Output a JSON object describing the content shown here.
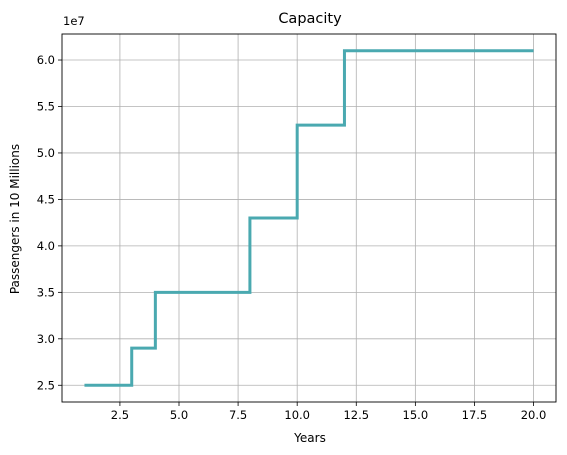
{
  "chart_data": {
    "type": "line",
    "drawstyle": "steps-post",
    "title": "Capacity",
    "xlabel": "Years",
    "ylabel": "Passengers in 10 Millions",
    "y_offset_label": "1e7",
    "xlim": [
      0.05,
      20.95
    ],
    "ylim": [
      23200000,
      62800000
    ],
    "grid": true,
    "line_color": "#4aa9b0",
    "x_ticks": [
      2.5,
      5.0,
      7.5,
      10.0,
      12.5,
      15.0,
      17.5,
      20.0
    ],
    "x_tick_labels": [
      "2.5",
      "5.0",
      "7.5",
      "10.0",
      "12.5",
      "15.0",
      "17.5",
      "20.0"
    ],
    "y_ticks": [
      25000000,
      30000000,
      35000000,
      40000000,
      45000000,
      50000000,
      55000000,
      60000000
    ],
    "y_tick_labels": [
      "2.5",
      "3.0",
      "3.5",
      "4.0",
      "4.5",
      "5.0",
      "5.5",
      "6.0"
    ],
    "series": [
      {
        "x": [
          1,
          3,
          4,
          8,
          10,
          12,
          20
        ],
        "values": [
          25000000,
          29000000,
          35000000,
          43000000,
          53000000,
          61000000,
          61000000
        ]
      }
    ]
  }
}
